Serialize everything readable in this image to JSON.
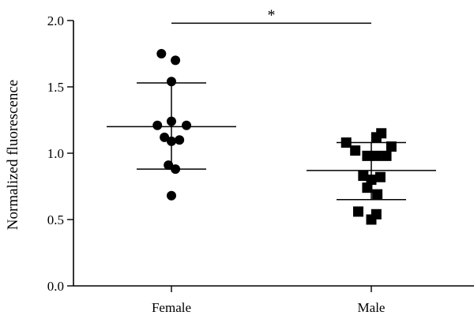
{
  "chart_data": {
    "type": "scatter",
    "ylabel": "Normalized fluorescence",
    "ylim": [
      0,
      2.0
    ],
    "yticks": [
      0.0,
      0.5,
      1.0,
      1.5,
      2.0
    ],
    "ytick_labels": [
      "0.0",
      "0.5",
      "1.0",
      "1.5",
      "2.0"
    ],
    "categories": [
      "Female",
      "Male"
    ],
    "series": [
      {
        "name": "Female",
        "marker": "circle",
        "mean": 1.2,
        "sd_upper": 1.53,
        "sd_lower": 0.88,
        "points": [
          {
            "dx": -0.1,
            "y": 1.75
          },
          {
            "dx": 0.04,
            "y": 1.7
          },
          {
            "dx": 0.0,
            "y": 1.54
          },
          {
            "dx": -0.14,
            "y": 1.21
          },
          {
            "dx": 0.0,
            "y": 1.24
          },
          {
            "dx": 0.15,
            "y": 1.21
          },
          {
            "dx": -0.07,
            "y": 1.12
          },
          {
            "dx": 0.0,
            "y": 1.09
          },
          {
            "dx": 0.08,
            "y": 1.1
          },
          {
            "dx": -0.03,
            "y": 0.91
          },
          {
            "dx": 0.04,
            "y": 0.88
          },
          {
            "dx": 0.0,
            "y": 0.68
          }
        ]
      },
      {
        "name": "Male",
        "marker": "square",
        "mean": 0.87,
        "sd_upper": 1.08,
        "sd_lower": 0.65,
        "points": [
          {
            "dx": -0.25,
            "y": 1.08
          },
          {
            "dx": 0.1,
            "y": 1.15
          },
          {
            "dx": 0.05,
            "y": 1.12
          },
          {
            "dx": -0.16,
            "y": 1.02
          },
          {
            "dx": 0.2,
            "y": 1.05
          },
          {
            "dx": -0.04,
            "y": 0.98
          },
          {
            "dx": 0.05,
            "y": 0.98
          },
          {
            "dx": 0.15,
            "y": 0.98
          },
          {
            "dx": -0.08,
            "y": 0.83
          },
          {
            "dx": 0.0,
            "y": 0.8
          },
          {
            "dx": 0.09,
            "y": 0.82
          },
          {
            "dx": -0.04,
            "y": 0.74
          },
          {
            "dx": 0.06,
            "y": 0.69
          },
          {
            "dx": -0.13,
            "y": 0.56
          },
          {
            "dx": 0.05,
            "y": 0.54
          },
          {
            "dx": 0.0,
            "y": 0.5
          }
        ]
      }
    ],
    "significance": {
      "label": "*",
      "y": 1.98
    }
  }
}
